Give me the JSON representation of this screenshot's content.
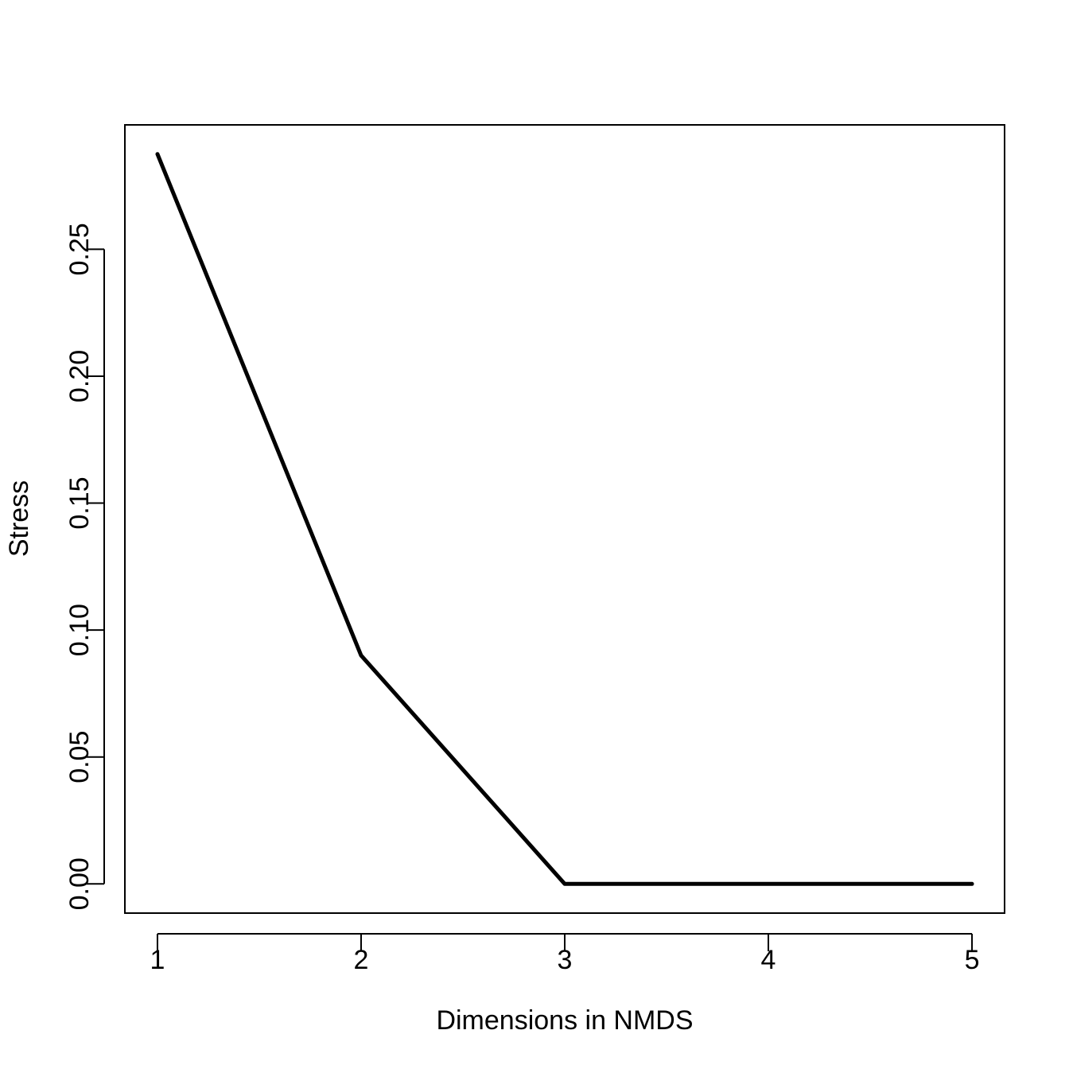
{
  "chart_data": {
    "type": "line",
    "title": "",
    "xlabel": "Dimensions in NMDS",
    "ylabel": "Stress",
    "x": [
      1,
      2,
      3,
      4,
      5
    ],
    "series": [
      {
        "values": [
          0.2875,
          0.09,
          0.0,
          0.0,
          0.0
        ]
      }
    ],
    "xlim": [
      0.84,
      5.16
    ],
    "ylim": [
      -0.0115,
      0.299
    ],
    "xticks": [
      1,
      2,
      3,
      4,
      5
    ],
    "xtick_labels": [
      "1",
      "2",
      "3",
      "4",
      "5"
    ],
    "yticks": [
      0,
      0.05,
      0.1,
      0.15,
      0.2,
      0.25
    ],
    "ytick_labels": [
      "0.00",
      "0.05",
      "0.10",
      "0.15",
      "0.20",
      "0.25"
    ],
    "grid": false,
    "line_color": "#000000"
  }
}
